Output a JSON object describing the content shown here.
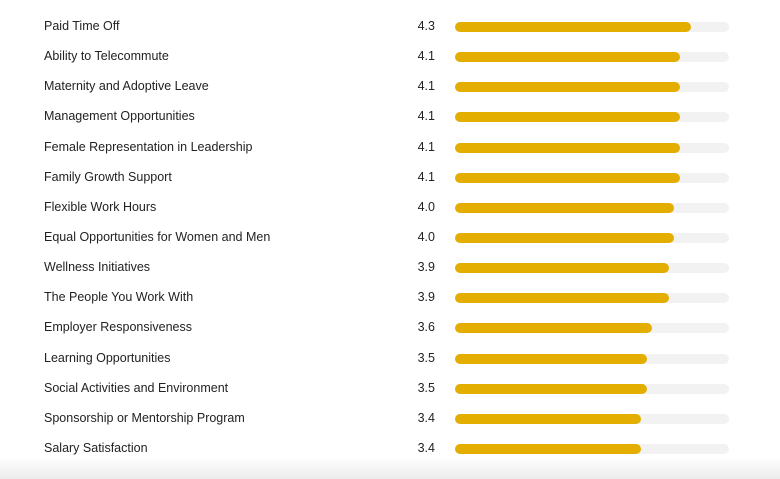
{
  "scale_max": 5,
  "bar_color": "#e4ae00",
  "track_color": "#f2f2f2",
  "ratings": [
    {
      "label": "Paid Time Off",
      "value": "4.3"
    },
    {
      "label": "Ability to Telecommute",
      "value": "4.1"
    },
    {
      "label": "Maternity and Adoptive Leave",
      "value": "4.1"
    },
    {
      "label": "Management Opportunities",
      "value": "4.1"
    },
    {
      "label": "Female Representation in Leadership",
      "value": "4.1"
    },
    {
      "label": "Family Growth Support",
      "value": "4.1"
    },
    {
      "label": "Flexible Work Hours",
      "value": "4.0"
    },
    {
      "label": "Equal Opportunities for Women and Men",
      "value": "4.0"
    },
    {
      "label": "Wellness Initiatives",
      "value": "3.9"
    },
    {
      "label": "The People You Work With",
      "value": "3.9"
    },
    {
      "label": "Employer Responsiveness",
      "value": "3.6"
    },
    {
      "label": "Learning Opportunities",
      "value": "3.5"
    },
    {
      "label": "Social Activities and Environment",
      "value": "3.5"
    },
    {
      "label": "Sponsorship or Mentorship Program",
      "value": "3.4"
    },
    {
      "label": "Salary Satisfaction",
      "value": "3.4"
    }
  ]
}
